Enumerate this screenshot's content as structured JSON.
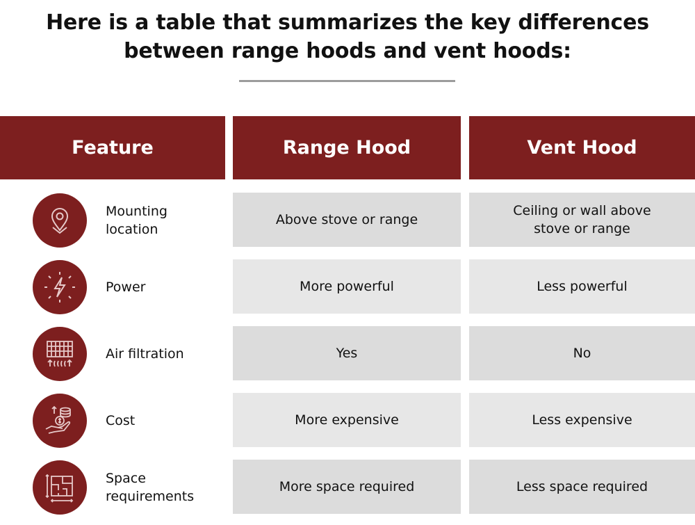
{
  "title": {
    "line1": "Here is a table that summarizes the key differences",
    "line2": "between range hoods and vent hoods:"
  },
  "colors": {
    "header_bg": "#7d1f1f",
    "icon_bg": "#7d1f1f",
    "cell_dark": "#dcdcdc",
    "cell_light": "#e7e7e7",
    "divider": "#9c9c9c"
  },
  "table": {
    "headers": {
      "feature": "Feature",
      "range_hood": "Range Hood",
      "vent_hood": "Vent Hood"
    },
    "rows": [
      {
        "icon": "location-pin-icon",
        "feature": "Mounting\nlocation",
        "range_hood": "Above stove or range",
        "vent_hood": "Ceiling or wall above\nstove or range"
      },
      {
        "icon": "lightning-bolt-icon",
        "feature": "Power",
        "range_hood": "More powerful",
        "vent_hood": "Less powerful"
      },
      {
        "icon": "air-filter-icon",
        "feature": "Air filtration",
        "range_hood": "Yes",
        "vent_hood": "No"
      },
      {
        "icon": "hand-coins-icon",
        "feature": "Cost",
        "range_hood": "More expensive",
        "vent_hood": "Less expensive"
      },
      {
        "icon": "floor-plan-icon",
        "feature": "Space\nrequirements",
        "range_hood": "More space required",
        "vent_hood": "Less space required"
      }
    ]
  }
}
